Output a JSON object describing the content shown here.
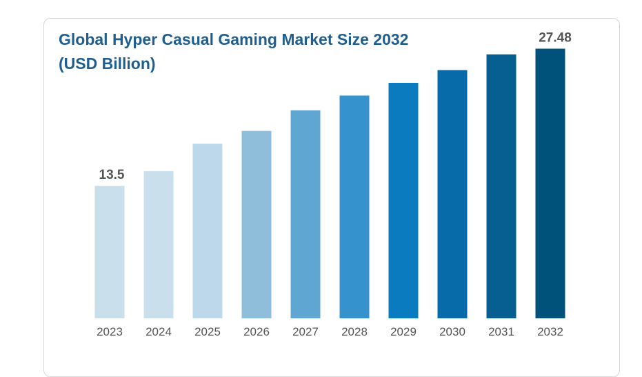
{
  "chart_data": {
    "type": "bar",
    "title": "Global Hyper Casual Gaming Market Size 2032 (USD Billion)",
    "xlabel": "",
    "ylabel": "",
    "categories": [
      "2023",
      "2024",
      "2025",
      "2026",
      "2027",
      "2028",
      "2029",
      "2030",
      "2031",
      "2032"
    ],
    "values": [
      13.5,
      15.0,
      17.8,
      19.1,
      21.2,
      22.7,
      24.0,
      25.3,
      26.9,
      27.48
    ],
    "data_labels": [
      {
        "category": "2023",
        "text": "13.5"
      },
      {
        "category": "2032",
        "text": "27.48"
      }
    ],
    "ylim": [
      0,
      28.5
    ],
    "grid": false,
    "legend": "none",
    "colors": [
      "#c9dfec",
      "#c9dfec",
      "#bcd8ea",
      "#8fbedb",
      "#5fa6d2",
      "#3592cd",
      "#0b7bc0",
      "#066ba8",
      "#075e91",
      "#00527a"
    ]
  }
}
